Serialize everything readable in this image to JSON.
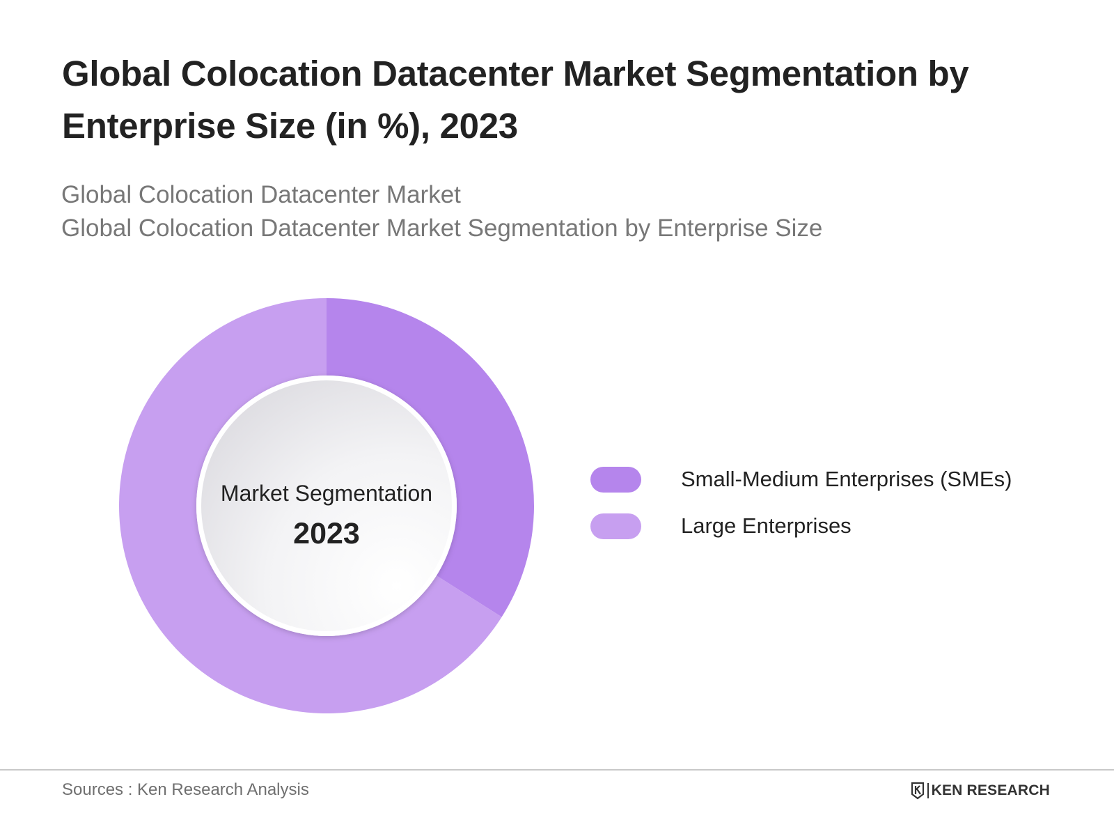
{
  "header": {
    "title": "Global Colocation Datacenter Market Segmentation by Enterprise Size (in %), 2023",
    "subtitle_line1": "Global Colocation Datacenter Market",
    "subtitle_line2": "Global Colocation Datacenter Market Segmentation by Enterprise Size"
  },
  "chart_data": {
    "type": "pie",
    "variant": "donut",
    "categories": [
      "Small-Medium Enterprises (SMEs)",
      "Large Enterprises"
    ],
    "values": [
      34,
      66
    ],
    "unit": "%",
    "colors": [
      "#b585ec",
      "#c79ff0"
    ],
    "center_label": "Market Segmentation",
    "center_year": "2023",
    "legend_position": "right"
  },
  "footer": {
    "source": "Sources : Ken Research Analysis",
    "brand": "KEN RESEARCH"
  }
}
